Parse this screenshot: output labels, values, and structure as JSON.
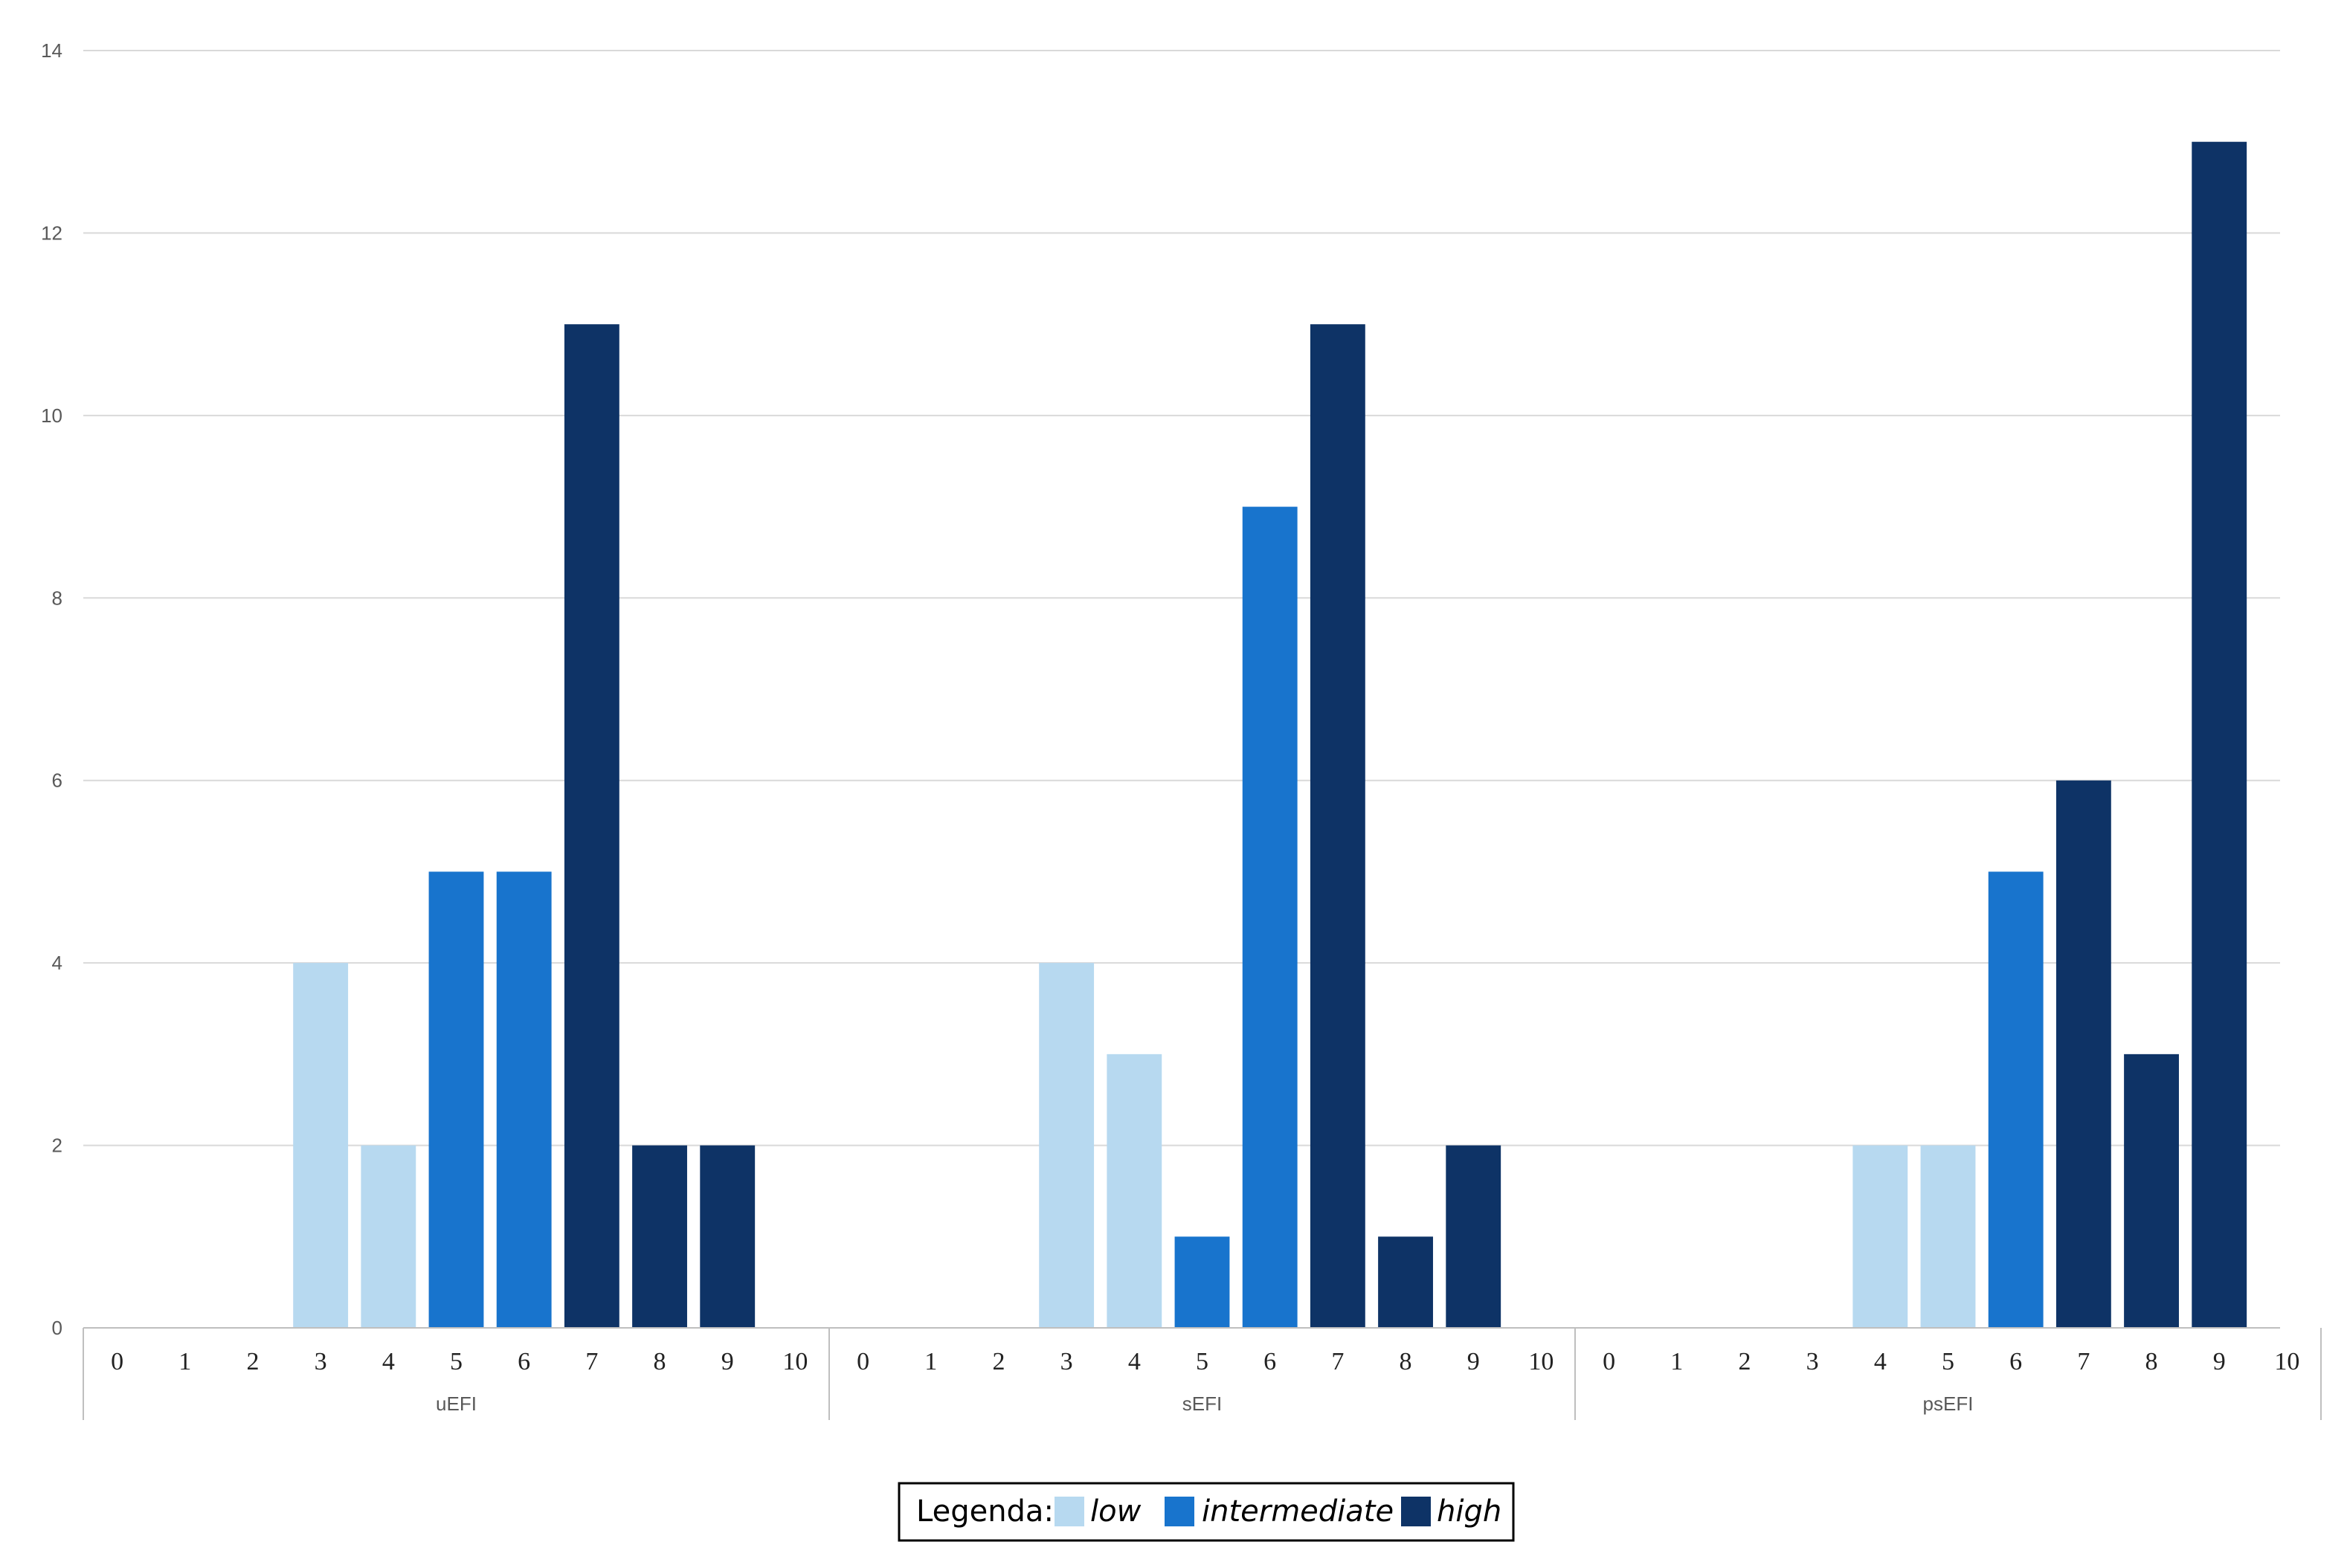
{
  "chart_data": {
    "type": "bar",
    "title": "",
    "xlabel": "",
    "ylabel": "",
    "ylim": [
      0,
      14
    ],
    "y_ticks": [
      0,
      2,
      4,
      6,
      8,
      10,
      12,
      14
    ],
    "grid": true,
    "categories": [
      "0",
      "1",
      "2",
      "3",
      "4",
      "5",
      "6",
      "7",
      "8",
      "9",
      "10"
    ],
    "groups": [
      {
        "name": "uEFI",
        "values": [
          0,
          0,
          0,
          4,
          2,
          5,
          5,
          11,
          2,
          2,
          0
        ],
        "levels": [
          "",
          "",
          "",
          "low",
          "low",
          "intermediate",
          "intermediate",
          "high",
          "high",
          "high",
          ""
        ]
      },
      {
        "name": "sEFI",
        "values": [
          0,
          0,
          0,
          4,
          3,
          1,
          9,
          11,
          1,
          2,
          0
        ],
        "levels": [
          "",
          "",
          "",
          "low",
          "low",
          "intermediate",
          "intermediate",
          "high",
          "high",
          "high",
          ""
        ]
      },
      {
        "name": "psEFI",
        "values": [
          0,
          0,
          0,
          0,
          2,
          2,
          5,
          6,
          3,
          13,
          0
        ],
        "levels": [
          "",
          "",
          "",
          "",
          "low",
          "low",
          "intermediate",
          "high",
          "high",
          "high",
          ""
        ]
      }
    ],
    "legend": {
      "title": "Legenda:",
      "placement": "bottom-center",
      "items": [
        {
          "key": "low",
          "label": "low",
          "color": "#b7d9f0"
        },
        {
          "key": "intermediate",
          "label": "intermediate",
          "color": "#1874cd"
        },
        {
          "key": "high",
          "label": "high",
          "color": "#0e3366"
        }
      ]
    },
    "colors": {
      "grid": "#d9d9d9",
      "axis": "#bfbfbf"
    }
  }
}
